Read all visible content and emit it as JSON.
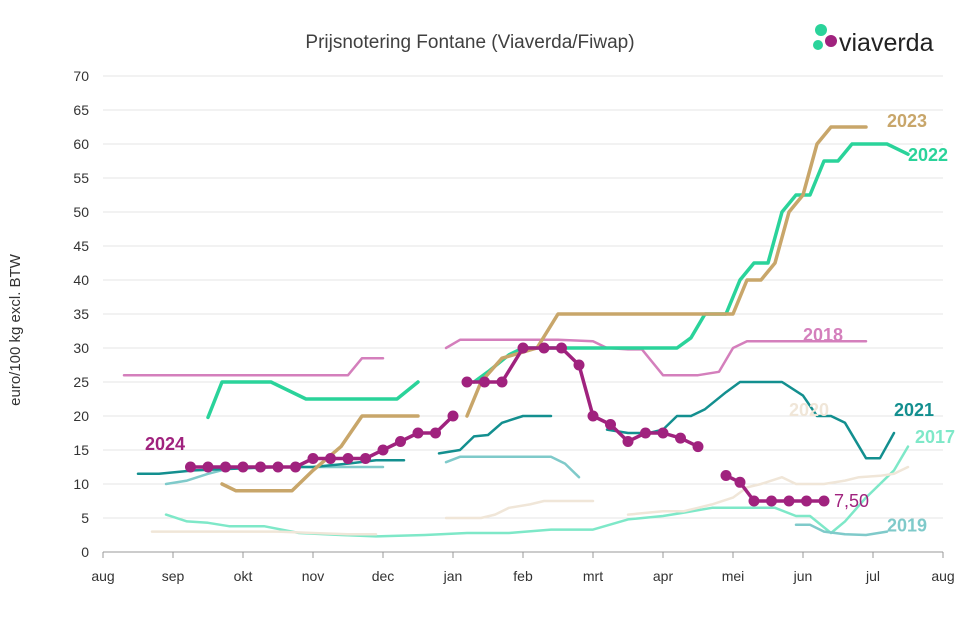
{
  "brand": {
    "name": "viaverda",
    "colors": [
      "#2ad39a",
      "#a0227e"
    ]
  },
  "chart_data": {
    "type": "line",
    "title": "Prijsnotering Fontane (Viaverda/Fiwap)",
    "ylabel": "euro/100 kg excl. BTW",
    "xlabel": "",
    "ylim": [
      0,
      70
    ],
    "yticks": [
      0,
      5,
      10,
      15,
      20,
      25,
      30,
      35,
      40,
      45,
      50,
      55,
      60,
      65,
      70
    ],
    "categories": [
      "aug",
      "sep",
      "okt",
      "nov",
      "dec",
      "jan",
      "feb",
      "mrt",
      "apr",
      "mei",
      "jun",
      "jul",
      "aug"
    ],
    "xlim": [
      0,
      12
    ],
    "grid": "horizontal",
    "annotations": [
      {
        "text": "7,50",
        "x": 10.3,
        "y": 7.5,
        "color": "#a0227e"
      }
    ],
    "series": [
      {
        "name": "2017",
        "color": "#7ee8c8",
        "width": 2.5,
        "label_pos": [
          11.6,
          16
        ],
        "points": [
          [
            0.9,
            5.5
          ],
          [
            1.2,
            4.5
          ],
          [
            1.5,
            4.3
          ],
          [
            1.8,
            3.8
          ],
          [
            2.3,
            3.8
          ],
          [
            2.8,
            2.8
          ],
          [
            3.4,
            2.5
          ],
          [
            3.9,
            2.3
          ],
          [
            4.6,
            2.5
          ],
          [
            5.2,
            2.8
          ],
          [
            5.8,
            2.8
          ],
          [
            6.4,
            3.3
          ],
          [
            7,
            3.3
          ],
          [
            7.5,
            4.8
          ],
          [
            8,
            5.3
          ],
          [
            8.3,
            5.8
          ],
          [
            8.7,
            6.5
          ],
          [
            9.3,
            6.5
          ],
          [
            9.6,
            6.5
          ],
          [
            9.9,
            5.3
          ],
          [
            10.1,
            5.3
          ],
          [
            10.4,
            2.8
          ],
          [
            10.6,
            4.5
          ],
          [
            10.9,
            8
          ],
          [
            11.3,
            12
          ],
          [
            11.5,
            15.5
          ]
        ]
      },
      {
        "name": "2018",
        "color": "#d47fbc",
        "width": 2.5,
        "label_pos": [
          10.0,
          31
        ],
        "points": [
          [
            0.3,
            26
          ],
          [
            3.5,
            26
          ],
          [
            3.7,
            28.5
          ],
          [
            4,
            28.5
          ],
          null,
          [
            4.9,
            30
          ],
          [
            5.1,
            31.2
          ],
          [
            6.5,
            31.2
          ],
          [
            7,
            31
          ],
          [
            7.2,
            30
          ],
          [
            7.5,
            29.8
          ],
          [
            7.7,
            29.8
          ],
          [
            8,
            26
          ],
          [
            8.5,
            26
          ],
          [
            8.8,
            26.5
          ],
          [
            9,
            30
          ],
          [
            9.2,
            31
          ],
          [
            9.9,
            31
          ],
          [
            10.2,
            31
          ],
          [
            10.5,
            31
          ],
          [
            10.9,
            31
          ]
        ]
      },
      {
        "name": "2019",
        "color": "#7fcaca",
        "width": 2.5,
        "label_pos": [
          11.2,
          3
        ],
        "points": [
          [
            0.9,
            10
          ],
          [
            1.2,
            10.5
          ],
          [
            1.5,
            11.5
          ],
          [
            1.8,
            12.3
          ],
          [
            2.5,
            12.5
          ],
          [
            3.5,
            12.5
          ],
          [
            4,
            12.5
          ],
          null,
          [
            4.9,
            13.2
          ],
          [
            5.1,
            14
          ],
          [
            6.4,
            14
          ],
          [
            6.6,
            13
          ],
          [
            6.8,
            11
          ],
          null,
          [
            9.9,
            4
          ],
          [
            10.1,
            4
          ],
          [
            10.3,
            3
          ],
          [
            10.6,
            2.6
          ],
          [
            10.9,
            2.5
          ],
          [
            11.2,
            3
          ]
        ]
      },
      {
        "name": "2020",
        "color": "#f0e6d8",
        "width": 2.5,
        "label_pos": [
          9.8,
          20
        ],
        "points": [
          [
            0.7,
            3
          ],
          [
            1,
            3
          ],
          [
            1.5,
            3
          ],
          [
            2,
            3
          ],
          [
            2.5,
            3
          ],
          [
            3,
            2.8
          ],
          [
            3.5,
            2.6
          ],
          [
            3.9,
            2.6
          ],
          null,
          [
            4.9,
            5
          ],
          [
            5.4,
            5
          ],
          [
            5.6,
            5.5
          ],
          [
            5.8,
            6.5
          ],
          [
            6.1,
            7
          ],
          [
            6.3,
            7.5
          ],
          [
            6.6,
            7.5
          ],
          [
            7,
            7.5
          ],
          null,
          [
            7.5,
            5.5
          ],
          [
            8,
            6
          ],
          [
            8.3,
            6
          ],
          [
            8.5,
            6.5
          ],
          [
            8.7,
            7
          ],
          [
            9,
            8
          ],
          [
            9.2,
            9.5
          ],
          [
            9.4,
            10
          ],
          [
            9.7,
            11
          ],
          [
            9.9,
            10
          ],
          [
            10,
            10
          ],
          [
            10.3,
            10
          ],
          [
            10.6,
            10.5
          ],
          [
            10.8,
            11
          ],
          [
            11.1,
            11.2
          ],
          [
            11.3,
            11.5
          ],
          [
            11.5,
            12.5
          ]
        ]
      },
      {
        "name": "2021",
        "color": "#138f8f",
        "width": 2.5,
        "label_pos": [
          11.3,
          20
        ],
        "points": [
          [
            0.5,
            11.5
          ],
          [
            0.8,
            11.5
          ],
          [
            1.3,
            12
          ],
          [
            2,
            12.3
          ],
          [
            2.5,
            12.5
          ],
          [
            3,
            12.5
          ],
          [
            3.5,
            13
          ],
          [
            3.9,
            13.5
          ],
          [
            4.3,
            13.5
          ],
          null,
          [
            4.8,
            14.5
          ],
          [
            5.1,
            15
          ],
          [
            5.3,
            17
          ],
          [
            5.5,
            17.2
          ],
          [
            5.7,
            19
          ],
          [
            6,
            20
          ],
          [
            6.3,
            20
          ],
          [
            6.4,
            20
          ],
          null,
          [
            7.2,
            18
          ],
          [
            7.5,
            17.5
          ],
          [
            7.8,
            17.5
          ],
          [
            8,
            18
          ],
          [
            8.2,
            20
          ],
          [
            8.4,
            20
          ],
          [
            8.6,
            21
          ],
          [
            8.9,
            23.5
          ],
          [
            9.1,
            25
          ],
          [
            9.4,
            25
          ],
          [
            9.7,
            25
          ],
          [
            10,
            23
          ],
          [
            10.2,
            20
          ],
          [
            10.4,
            20
          ],
          [
            10.6,
            19
          ],
          [
            10.9,
            13.8
          ],
          [
            11.1,
            13.8
          ],
          [
            11.3,
            17.5
          ]
        ]
      },
      {
        "name": "2022",
        "color": "#2ad39a",
        "width": 3.5,
        "label_pos": [
          11.5,
          57.5
        ],
        "points": [
          [
            1.5,
            19.8
          ],
          [
            1.7,
            25
          ],
          [
            2.4,
            25
          ],
          [
            2.9,
            22.5
          ],
          [
            3.6,
            22.5
          ],
          [
            4.2,
            22.5
          ],
          [
            4.5,
            25
          ],
          null,
          [
            5.3,
            25
          ],
          [
            5.5,
            26.5
          ],
          [
            5.8,
            29
          ],
          [
            6,
            30
          ],
          [
            6.3,
            30
          ],
          [
            6.7,
            30
          ],
          [
            7.2,
            30
          ],
          [
            7.7,
            30
          ],
          [
            8.2,
            30
          ],
          [
            8.4,
            31.5
          ],
          [
            8.6,
            35
          ],
          [
            8.9,
            35
          ],
          [
            9.1,
            40
          ],
          [
            9.3,
            42.5
          ],
          [
            9.5,
            42.5
          ],
          [
            9.7,
            50
          ],
          [
            9.9,
            52.5
          ],
          [
            10.1,
            52.5
          ],
          [
            10.3,
            57.5
          ],
          [
            10.5,
            57.5
          ],
          [
            10.7,
            60
          ],
          [
            10.9,
            60
          ],
          [
            11.2,
            60
          ],
          [
            11.5,
            58.5
          ]
        ]
      },
      {
        "name": "2023",
        "color": "#c8a66a",
        "width": 3.5,
        "label_pos": [
          11.2,
          62.5
        ],
        "points": [
          [
            1.7,
            10
          ],
          [
            1.9,
            9
          ],
          [
            2.2,
            9
          ],
          [
            2.7,
            9
          ],
          [
            3,
            12
          ],
          [
            3.4,
            15.5
          ],
          [
            3.7,
            20
          ],
          [
            4,
            20
          ],
          [
            4.5,
            20
          ],
          null,
          [
            5.2,
            20
          ],
          [
            5.4,
            25
          ],
          [
            5.7,
            28.5
          ],
          [
            6.2,
            30
          ],
          [
            6.5,
            35
          ],
          [
            7,
            35
          ],
          [
            7.5,
            35
          ],
          [
            8,
            35
          ],
          [
            8.5,
            35
          ],
          [
            9,
            35
          ],
          [
            9.2,
            40
          ],
          [
            9.4,
            40
          ],
          [
            9.6,
            42.5
          ],
          [
            9.8,
            50
          ],
          [
            10,
            52.5
          ],
          [
            10.2,
            60
          ],
          [
            10.4,
            62.5
          ],
          [
            10.6,
            62.5
          ],
          [
            10.9,
            62.5
          ]
        ]
      },
      {
        "name": "2024",
        "color": "#a0227e",
        "width": 3.5,
        "markers": true,
        "label_pos": [
          0.6,
          15
        ],
        "points": [
          [
            1.25,
            12.5
          ],
          [
            1.5,
            12.5
          ],
          [
            1.75,
            12.5
          ],
          [
            2,
            12.5
          ],
          [
            2.25,
            12.5
          ],
          [
            2.5,
            12.5
          ],
          [
            2.75,
            12.5
          ],
          [
            3,
            13.75
          ],
          [
            3.25,
            13.75
          ],
          [
            3.5,
            13.75
          ],
          [
            3.75,
            13.75
          ],
          [
            4,
            15
          ],
          [
            4.25,
            16.25
          ],
          [
            4.5,
            17.5
          ],
          [
            4.75,
            17.5
          ],
          [
            5,
            20
          ],
          null,
          [
            5.2,
            25
          ],
          [
            5.45,
            25
          ],
          [
            5.7,
            25
          ],
          [
            6,
            30
          ],
          [
            6.3,
            30
          ],
          [
            6.55,
            30
          ],
          [
            6.8,
            27.5
          ],
          [
            7,
            20
          ],
          [
            7.25,
            18.75
          ],
          [
            7.5,
            16.25
          ],
          [
            7.75,
            17.5
          ],
          [
            8,
            17.5
          ],
          [
            8.25,
            16.75
          ],
          [
            8.5,
            15.5
          ],
          null,
          [
            8.9,
            11.25
          ],
          [
            9.1,
            10.25
          ],
          [
            9.3,
            7.5
          ],
          [
            9.55,
            7.5
          ],
          [
            9.8,
            7.5
          ],
          [
            10.05,
            7.5
          ],
          [
            10.3,
            7.5
          ]
        ]
      }
    ]
  }
}
